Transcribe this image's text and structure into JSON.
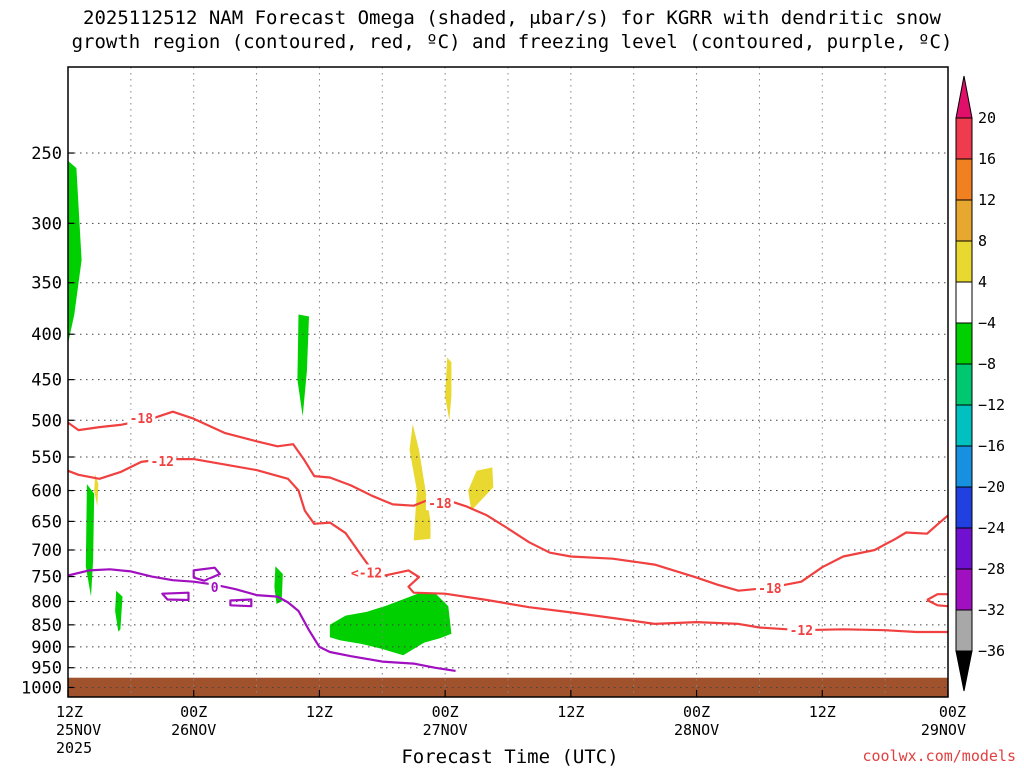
{
  "title": {
    "line1": "2025112512 NAM Forecast Omega (shaded, μbar/s) for KGRR with dendritic snow",
    "line2": "growth region (contoured, red, ºC) and freezing level (contoured, purple, ºC)"
  },
  "credit": "coolwx.com/models",
  "chart_data": {
    "type": "time-height cross section",
    "title": "2025112512 NAM Forecast Omega (shaded, μbar/s) for KGRR with dendritic snow growth region (contoured, red, ºC) and freezing level (contoured, purple, ºC)",
    "xlabel": "Forecast Time (UTC)",
    "ylabel": "",
    "x_range_hours": [
      0,
      84
    ],
    "x_ticks": [
      {
        "h": 0,
        "label": "12Z",
        "sub": "25NOV",
        "sub2": "2025"
      },
      {
        "h": 12,
        "label": "00Z",
        "sub": "26NOV",
        "sub2": ""
      },
      {
        "h": 24,
        "label": "12Z",
        "sub": "",
        "sub2": ""
      },
      {
        "h": 36,
        "label": "00Z",
        "sub": "27NOV",
        "sub2": ""
      },
      {
        "h": 48,
        "label": "12Z",
        "sub": "",
        "sub2": ""
      },
      {
        "h": 60,
        "label": "00Z",
        "sub": "28NOV",
        "sub2": ""
      },
      {
        "h": 72,
        "label": "12Z",
        "sub": "",
        "sub2": ""
      },
      {
        "h": 84,
        "label": "00Z",
        "sub": "29NOV",
        "sub2": ""
      }
    ],
    "y_axis_hPa": [
      250,
      300,
      350,
      400,
      450,
      500,
      550,
      600,
      650,
      700,
      750,
      800,
      850,
      900,
      950,
      1000
    ],
    "y_range_hPa": [
      200,
      1025
    ],
    "colorbar": {
      "labels": [
        20,
        16,
        12,
        8,
        4,
        -4,
        -8,
        -12,
        -16,
        -20,
        -24,
        -28,
        -32,
        -36
      ],
      "colors": [
        "#f03a4e",
        "#f08020",
        "#e8a830",
        "#e8d830",
        "#ffffff",
        "#00d000",
        "#00c870",
        "#00c0c0",
        "#1890e0",
        "#2040e0",
        "#7010d0",
        "#a010c0",
        "#a8a8a8"
      ],
      "top_arrow_color": "#e0106a",
      "bottom_arrow_color": "#000000"
    },
    "terrain": {
      "color": "#a0522d",
      "top_hPa": 975
    },
    "omega_regions": [
      {
        "color": "#00d000",
        "points": [
          [
            0.0,
            255
          ],
          [
            0.8,
            260
          ],
          [
            1.3,
            330
          ],
          [
            0.6,
            380
          ],
          [
            0.0,
            410
          ]
        ]
      },
      {
        "color": "#00d000",
        "points": [
          [
            22.0,
            380
          ],
          [
            23.0,
            382
          ],
          [
            22.8,
            440
          ],
          [
            22.4,
            495
          ],
          [
            21.9,
            450
          ]
        ]
      },
      {
        "color": "#00d000",
        "points": [
          [
            1.8,
            590
          ],
          [
            2.5,
            605
          ],
          [
            2.4,
            720
          ],
          [
            2.2,
            790
          ],
          [
            1.7,
            730
          ]
        ]
      },
      {
        "color": "#00d000",
        "points": [
          [
            4.6,
            778
          ],
          [
            5.2,
            790
          ],
          [
            5.0,
            860
          ],
          [
            4.8,
            865
          ],
          [
            4.5,
            820
          ]
        ]
      },
      {
        "color": "#00d000",
        "points": [
          [
            19.8,
            730
          ],
          [
            20.5,
            745
          ],
          [
            20.4,
            800
          ],
          [
            19.9,
            805
          ],
          [
            19.7,
            770
          ]
        ]
      },
      {
        "color": "#00d000",
        "points": [
          [
            25.0,
            850
          ],
          [
            26.5,
            830
          ],
          [
            28.5,
            822
          ],
          [
            30.5,
            808
          ],
          [
            33.5,
            783
          ],
          [
            35.0,
            782
          ],
          [
            36.3,
            810
          ],
          [
            36.6,
            870
          ],
          [
            35.5,
            880
          ],
          [
            34.0,
            890
          ],
          [
            32.0,
            920
          ],
          [
            30.0,
            905
          ],
          [
            28.0,
            893
          ],
          [
            26.0,
            885
          ],
          [
            25.0,
            878
          ]
        ]
      },
      {
        "color": "#e8d830",
        "points": [
          [
            36.2,
            425
          ],
          [
            36.6,
            430
          ],
          [
            36.6,
            470
          ],
          [
            36.4,
            500
          ],
          [
            36.0,
            470
          ]
        ]
      },
      {
        "color": "#e8d830",
        "points": [
          [
            32.9,
            505
          ],
          [
            33.5,
            540
          ],
          [
            34.6,
            650
          ],
          [
            34.6,
            680
          ],
          [
            33.0,
            683
          ],
          [
            33.3,
            600
          ],
          [
            32.6,
            540
          ]
        ]
      },
      {
        "color": "#e8d830",
        "points": [
          [
            38.2,
            600
          ],
          [
            39.0,
            570
          ],
          [
            40.5,
            565
          ],
          [
            40.6,
            595
          ],
          [
            38.5,
            632
          ]
        ]
      },
      {
        "color": "#e8d830",
        "points": [
          [
            2.6,
            575
          ],
          [
            2.9,
            590
          ],
          [
            2.8,
            625
          ],
          [
            2.5,
            600
          ]
        ]
      }
    ],
    "series": [
      {
        "name": "-18",
        "color": "#f04040",
        "points": [
          [
            0.0,
            503
          ],
          [
            1.0,
            513
          ],
          [
            3.0,
            509
          ],
          [
            5.0,
            506
          ],
          [
            8.0,
            498
          ],
          [
            10.0,
            489
          ],
          [
            12.0,
            498
          ],
          [
            15.0,
            517
          ],
          [
            18.0,
            528
          ],
          [
            20.0,
            535
          ],
          [
            21.5,
            532
          ],
          [
            22.5,
            553
          ],
          [
            23.5,
            578
          ],
          [
            25.0,
            580
          ],
          [
            27.0,
            592
          ],
          [
            29.0,
            608
          ],
          [
            31.0,
            622
          ],
          [
            33.0,
            624
          ],
          [
            34.5,
            614
          ],
          [
            36.0,
            614
          ],
          [
            38.0,
            625
          ],
          [
            40.0,
            640
          ],
          [
            42.0,
            662
          ],
          [
            44.0,
            686
          ],
          [
            46.0,
            705
          ],
          [
            48.0,
            712
          ],
          [
            52.0,
            716
          ],
          [
            56.0,
            727
          ],
          [
            60.0,
            752
          ],
          [
            62.0,
            766
          ],
          [
            64.0,
            778
          ],
          [
            66.0,
            774
          ],
          [
            68.0,
            768
          ],
          [
            70.0,
            760
          ],
          [
            72.0,
            732
          ],
          [
            74.0,
            712
          ],
          [
            77.0,
            700
          ],
          [
            79.0,
            680
          ],
          [
            80.0,
            669
          ],
          [
            82.0,
            671
          ],
          [
            83.0,
            655
          ],
          [
            84.0,
            640
          ]
        ]
      },
      {
        "name": "-12",
        "color": "#f04040",
        "points": [
          [
            0.0,
            570
          ],
          [
            1.0,
            576
          ],
          [
            3.0,
            582
          ],
          [
            5.0,
            572
          ],
          [
            7.0,
            557
          ],
          [
            9.0,
            553
          ],
          [
            12.0,
            553
          ],
          [
            15.0,
            561
          ],
          [
            18.0,
            569
          ],
          [
            21.0,
            582
          ],
          [
            22.0,
            600
          ],
          [
            22.6,
            632
          ],
          [
            23.5,
            654
          ],
          [
            25.0,
            652
          ],
          [
            26.5,
            670
          ],
          [
            28.0,
            710
          ],
          [
            29.0,
            737
          ],
          [
            30.0,
            749
          ],
          [
            32.5,
            738
          ],
          [
            33.5,
            751
          ],
          [
            32.5,
            770
          ],
          [
            33.0,
            782
          ],
          [
            36.0,
            784
          ],
          [
            40.0,
            797
          ],
          [
            44.0,
            812
          ],
          [
            48.0,
            823
          ],
          [
            52.0,
            835
          ],
          [
            56.0,
            848
          ],
          [
            60.0,
            844
          ],
          [
            64.0,
            848
          ],
          [
            66.0,
            856
          ],
          [
            70.0,
            862
          ],
          [
            74.0,
            860
          ],
          [
            78.0,
            862
          ],
          [
            81.0,
            866
          ],
          [
            84.0,
            866
          ]
        ]
      },
      {
        "name": "-12",
        "color": "#f04040",
        "points": [
          [
            82.0,
            797
          ],
          [
            83.0,
            785
          ],
          [
            84.0,
            785
          ]
        ]
      },
      {
        "name": "-12",
        "color": "#f04040",
        "points": [
          [
            82.0,
            797
          ],
          [
            83.0,
            808
          ],
          [
            84.0,
            810
          ]
        ]
      },
      {
        "name": "0",
        "color": "#a010c0",
        "points": [
          [
            0.0,
            748
          ],
          [
            2.0,
            738
          ],
          [
            4.0,
            736
          ],
          [
            6.0,
            740
          ],
          [
            8.0,
            750
          ],
          [
            10.0,
            757
          ],
          [
            12.0,
            760
          ],
          [
            14.0,
            766
          ],
          [
            16.0,
            775
          ],
          [
            18.0,
            787
          ],
          [
            20.0,
            790
          ],
          [
            21.0,
            802
          ],
          [
            22.0,
            820
          ],
          [
            23.0,
            862
          ],
          [
            24.0,
            900
          ],
          [
            25.0,
            912
          ],
          [
            27.0,
            922
          ],
          [
            30.0,
            935
          ],
          [
            33.0,
            940
          ],
          [
            35.0,
            950
          ],
          [
            37.0,
            958
          ]
        ]
      },
      {
        "name": "0",
        "color": "#a010c0",
        "closed": true,
        "points": [
          [
            12.0,
            738
          ],
          [
            14.0,
            733
          ],
          [
            14.5,
            745
          ],
          [
            13.0,
            758
          ],
          [
            12.0,
            752
          ]
        ]
      },
      {
        "name": "0",
        "color": "#a010c0",
        "closed": true,
        "points": [
          [
            9.0,
            784
          ],
          [
            11.5,
            782
          ],
          [
            11.5,
            797
          ],
          [
            9.5,
            796
          ]
        ]
      },
      {
        "name": "0",
        "color": "#a010c0",
        "closed": true,
        "points": [
          [
            15.5,
            798
          ],
          [
            17.5,
            796
          ],
          [
            17.5,
            810
          ],
          [
            15.5,
            808
          ]
        ]
      }
    ],
    "contour_labels": [
      {
        "text": "-18",
        "h": 7.0,
        "p": 497,
        "color": "#f04040"
      },
      {
        "text": "-12",
        "h": 9.0,
        "p": 556,
        "color": "#f04040"
      },
      {
        "text": "-18",
        "h": 35.5,
        "p": 620,
        "color": "#f04040"
      },
      {
        "text": "<-12",
        "h": 28.5,
        "p": 742,
        "color": "#f04040"
      },
      {
        "text": "-18",
        "h": 67.0,
        "p": 773,
        "color": "#f04040"
      },
      {
        "text": "-12",
        "h": 70.0,
        "p": 862,
        "color": "#f04040"
      },
      {
        "text": "0",
        "h": 14.0,
        "p": 771,
        "color": "#a010c0"
      }
    ]
  }
}
